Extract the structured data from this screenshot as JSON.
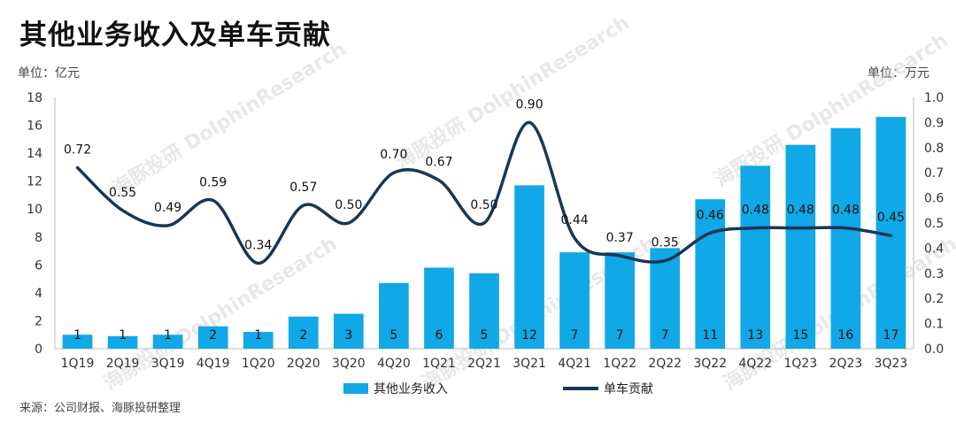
{
  "title": "其他业务收入及单车贡献",
  "unit_left": "单位：亿元",
  "unit_right": "单位：万元",
  "source": "来源：公司财报、海豚投研整理",
  "watermark": "海豚投研 DolphinResearch",
  "colors": {
    "bar": "#10a8e6",
    "line": "#1b3556",
    "axis": "#bbbbbb"
  },
  "chart_data": {
    "type": "bar+line",
    "categories": [
      "1Q19",
      "2Q19",
      "3Q19",
      "4Q19",
      "1Q20",
      "2Q20",
      "3Q20",
      "4Q20",
      "1Q21",
      "2Q21",
      "3Q21",
      "4Q21",
      "1Q22",
      "2Q22",
      "3Q22",
      "4Q22",
      "1Q23",
      "2Q23",
      "3Q23"
    ],
    "series": [
      {
        "name": "其他业务收入",
        "type": "bar",
        "axis": "left",
        "values": [
          1.0,
          0.9,
          1.0,
          1.6,
          1.2,
          2.3,
          2.5,
          4.7,
          5.8,
          5.4,
          11.7,
          6.9,
          6.9,
          7.2,
          10.7,
          13.1,
          14.6,
          15.8,
          16.6
        ],
        "labels": [
          "1",
          "1",
          "1",
          "2",
          "1",
          "2",
          "3",
          "5",
          "6",
          "5",
          "12",
          "7",
          "7",
          "7",
          "11",
          "13",
          "15",
          "16",
          "17"
        ]
      },
      {
        "name": "单车贡献",
        "type": "line",
        "axis": "right",
        "values": [
          0.72,
          0.55,
          0.49,
          0.59,
          0.34,
          0.57,
          0.5,
          0.7,
          0.67,
          0.5,
          0.9,
          0.44,
          0.37,
          0.35,
          0.46,
          0.48,
          0.48,
          0.48,
          0.45
        ],
        "labels": [
          "0.72",
          "0.55",
          "0.49",
          "0.59",
          "0.34",
          "0.57",
          "0.50",
          "0.70",
          "0.67",
          "0.50",
          "0.90",
          "0.44",
          "0.37",
          "0.35",
          "0.46",
          "0.48",
          "0.48",
          "0.48",
          "0.45"
        ]
      }
    ],
    "y_left": {
      "min": 0,
      "max": 18,
      "ticks": [
        "0",
        "2",
        "4",
        "6",
        "8",
        "10",
        "12",
        "14",
        "16",
        "18"
      ]
    },
    "y_right": {
      "min": 0,
      "max": 1.0,
      "ticks": [
        "0.0",
        "0.1",
        "0.2",
        "0.3",
        "0.4",
        "0.5",
        "0.6",
        "0.7",
        "0.8",
        "0.9",
        "1.0"
      ]
    },
    "legend": {
      "position": "bottom",
      "items": [
        "其他业务收入",
        "单车贡献"
      ]
    }
  }
}
